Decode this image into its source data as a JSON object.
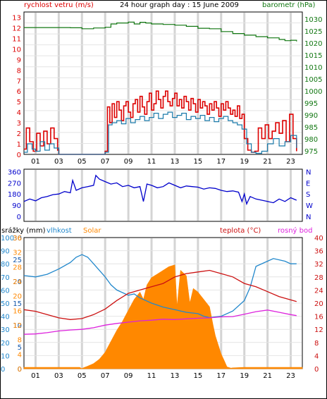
{
  "title": "24 hour graph day : 15 June 2009",
  "colors": {
    "wind": "#dd0000",
    "wind_avg": "#1a7aaa",
    "baro": "#117711",
    "dir": "#0000cc",
    "humidity": "#2288cc",
    "solar": "#ff8800",
    "temp": "#cc1111",
    "dew": "#dd22dd",
    "rain": "#1155aa",
    "grid": "#d4d4d4",
    "axis": "#000000"
  },
  "chart_data": [
    {
      "type": "line",
      "title": "24 hour graph day : 15 June 2009",
      "left_axis_label": "rychlost vetru (m/s)",
      "right_axis_label": "barometr (hPa)",
      "x_ticks": [
        "01",
        "03",
        "05",
        "07",
        "09",
        "11",
        "13",
        "15",
        "17",
        "19",
        "21",
        "23"
      ],
      "left_ylim": [
        0,
        13.5
      ],
      "left_ticks": [
        "0",
        "1",
        "2",
        "3",
        "4",
        "5",
        "6",
        "7",
        "8",
        "9",
        "10",
        "11",
        "12",
        "13"
      ],
      "right_ylim": [
        973.5,
        1033
      ],
      "right_ticks": [
        "975",
        "980",
        "985",
        "990",
        "995",
        "1000",
        "1005",
        "1010",
        "1015",
        "1020",
        "1025",
        "1030"
      ],
      "x_range": [
        0,
        24
      ],
      "series": [
        {
          "axis": "left",
          "style": "step",
          "x": [
            0,
            0.2,
            0.5,
            0.8,
            1.1,
            1.4,
            1.7,
            2,
            2.3,
            2.6,
            2.9,
            3,
            3.5,
            4,
            5,
            6,
            7,
            7.2,
            7.4,
            7.6,
            7.8,
            8,
            8.2,
            8.4,
            8.6,
            8.8,
            9,
            9.2,
            9.4,
            9.6,
            9.8,
            10,
            10.2,
            10.4,
            10.6,
            10.8,
            11,
            11.2,
            11.4,
            11.6,
            11.8,
            12,
            12.2,
            12.4,
            12.6,
            12.8,
            13,
            13.2,
            13.4,
            13.6,
            13.8,
            14,
            14.2,
            14.4,
            14.6,
            14.8,
            15,
            15.2,
            15.4,
            15.6,
            15.8,
            16,
            16.2,
            16.4,
            16.6,
            16.8,
            17,
            17.2,
            17.4,
            17.6,
            17.8,
            18,
            18.2,
            18.4,
            18.6,
            18.8,
            19,
            19.3,
            19.6,
            19.9,
            20.2,
            20.5,
            20.8,
            21.1,
            21.4,
            21.7,
            22,
            22.3,
            22.6,
            22.9,
            23.2,
            23.5
          ],
          "values": [
            0.5,
            2.5,
            1.2,
            0.3,
            2,
            0.8,
            2.2,
            1,
            2.5,
            1.5,
            0.4,
            0,
            0,
            0,
            0,
            0,
            0.3,
            4.5,
            3,
            4.8,
            3.5,
            5,
            4.2,
            3.2,
            4.6,
            5,
            4,
            3.5,
            4.8,
            5.2,
            4,
            5.5,
            4.5,
            3.8,
            5,
            5.8,
            4.2,
            4.8,
            6,
            5.2,
            4.4,
            5.5,
            6,
            5,
            4.6,
            5.3,
            5.8,
            4.6,
            5.2,
            4.4,
            5.5,
            5,
            4.2,
            5.3,
            4.8,
            4,
            5.2,
            4.4,
            5,
            4.6,
            3.8,
            4.8,
            4.2,
            5,
            4.4,
            3.6,
            4.8,
            4.2,
            5,
            4.4,
            3.8,
            4.2,
            3.6,
            4.6,
            3.4,
            3.8,
            1.5,
            0.4,
            0.2,
            0.3,
            2.5,
            1.5,
            2.8,
            1.5,
            2.2,
            3,
            2,
            3.2,
            1.2,
            3.8,
            1.5,
            0.3
          ],
          "name": ""
        },
        {
          "axis": "left",
          "style": "step",
          "x": [
            0,
            0.3,
            0.7,
            1,
            1.4,
            1.8,
            2.2,
            2.6,
            3,
            4,
            5,
            6,
            7,
            7.3,
            7.6,
            8,
            8.4,
            8.8,
            9.2,
            9.6,
            10,
            10.4,
            10.8,
            11.2,
            11.6,
            12,
            12.4,
            12.8,
            13.2,
            13.6,
            14,
            14.4,
            14.8,
            15.2,
            15.6,
            16,
            16.4,
            16.8,
            17.2,
            17.6,
            18,
            18.4,
            18.8,
            19.2,
            19.6,
            20,
            20.5,
            21,
            21.5,
            22,
            22.5,
            23,
            23.5
          ],
          "values": [
            0.2,
            1,
            0.5,
            0.3,
            1.2,
            0.4,
            1,
            0.6,
            0,
            0,
            0,
            0,
            0.2,
            2.8,
            3,
            3.2,
            2.9,
            3.4,
            3,
            3.3,
            3.6,
            3.2,
            3.5,
            3.9,
            3.4,
            3.8,
            4,
            3.5,
            3.7,
            3.9,
            3.3,
            3.6,
            3.4,
            3.7,
            3.2,
            3.5,
            3.1,
            3.4,
            3.6,
            3.2,
            3,
            2.8,
            2.4,
            1,
            0.2,
            0.1,
            0.3,
            1,
            1.5,
            0.8,
            1.2,
            1.8,
            0.6
          ],
          "name": ""
        },
        {
          "axis": "right",
          "style": "step",
          "x": [
            0,
            3,
            4,
            5,
            6,
            7,
            7.5,
            8,
            9,
            9.5,
            10,
            10.5,
            11,
            12,
            13,
            14,
            15,
            16,
            17,
            18,
            19,
            20,
            21,
            22,
            22.5,
            23,
            23.5
          ],
          "values": [
            1026.5,
            1026.5,
            1026.4,
            1026,
            1026.3,
            1026.6,
            1028,
            1028.4,
            1028.8,
            1028,
            1028.7,
            1028.4,
            1028,
            1027.8,
            1027.5,
            1027,
            1026.2,
            1026,
            1024.8,
            1024,
            1023.3,
            1022.7,
            1022.2,
            1021.5,
            1021,
            1021.2,
            1020.7
          ],
          "name": ""
        }
      ]
    },
    {
      "type": "line",
      "left_ticks": [
        "0",
        "90",
        "180",
        "270",
        "360"
      ],
      "left_ylim": [
        -40,
        380
      ],
      "right_ticks": [
        "N",
        "W",
        "S",
        "E",
        "N"
      ],
      "x_range": [
        0,
        24
      ],
      "series": [
        {
          "x": [
            0,
            0.5,
            1,
            1.5,
            2,
            2.5,
            3,
            3.5,
            4,
            4.2,
            4.5,
            5,
            5.5,
            6,
            6.2,
            6.5,
            7,
            7.5,
            8,
            8.5,
            9,
            9.5,
            10,
            10.3,
            10.6,
            11,
            11.5,
            12,
            12.5,
            13,
            13.5,
            14,
            14.5,
            15,
            15.5,
            16,
            16.5,
            17,
            17.5,
            18,
            18.5,
            18.8,
            19,
            19.2,
            19.5,
            20,
            20.5,
            21,
            21.5,
            22,
            22.5,
            23,
            23.5
          ],
          "values": [
            120,
            140,
            125,
            150,
            160,
            175,
            180,
            200,
            190,
            290,
            210,
            230,
            240,
            250,
            330,
            300,
            280,
            260,
            270,
            240,
            250,
            230,
            240,
            120,
            260,
            250,
            230,
            240,
            270,
            250,
            230,
            245,
            240,
            235,
            220,
            230,
            225,
            210,
            200,
            205,
            195,
            120,
            180,
            100,
            160,
            140,
            130,
            120,
            110,
            140,
            120,
            150,
            130
          ],
          "name": ""
        }
      ]
    },
    {
      "type": "line",
      "left_label_1": "srážky (mm)",
      "left_label_2": "vlhkost",
      "left_label_3": "Solar",
      "right_label_1": "teplota (°C)",
      "right_label_2": "rosný bod",
      "x_ticks": [
        "01",
        "03",
        "05",
        "07",
        "09",
        "11",
        "13",
        "15",
        "17",
        "19",
        "21",
        "23"
      ],
      "rain_ticks": [
        "0",
        "5",
        "10",
        "15",
        "20",
        "25",
        "30"
      ],
      "humidity_ticks": [
        "0",
        "10",
        "20",
        "30",
        "40",
        "50",
        "60",
        "70",
        "80",
        "90",
        "100"
      ],
      "solar_ticks": [
        "0",
        "4",
        "8",
        "12",
        "16",
        "20",
        "24",
        "28",
        "32",
        "36"
      ],
      "temp_ticks": [
        "0",
        "4",
        "8",
        "12",
        "16",
        "20",
        "24",
        "28",
        "32",
        "36",
        "40"
      ],
      "ylim": [
        0,
        1
      ],
      "x_range": [
        0,
        24
      ],
      "series": [
        {
          "axis": "humidity",
          "x": [
            0,
            1,
            2,
            3,
            4,
            4.5,
            5,
            5.5,
            6,
            7,
            7.5,
            8,
            8.5,
            9,
            9.5,
            10,
            10.5,
            11,
            12,
            13,
            14,
            15,
            15.5,
            16,
            17,
            18,
            19,
            19.5,
            20,
            21,
            21.5,
            22,
            22.5,
            23,
            23.5
          ],
          "values": [
            71,
            70,
            72,
            76,
            81,
            85,
            87,
            85,
            80,
            70,
            64,
            60,
            58,
            56,
            57,
            54,
            52,
            50,
            47,
            45,
            43,
            42,
            40,
            39,
            40,
            44,
            52,
            62,
            78,
            82,
            84,
            83,
            82,
            80,
            80
          ],
          "name": ""
        },
        {
          "axis": "solar",
          "style": "area",
          "x": [
            0,
            4.8,
            5,
            5.5,
            6,
            6.5,
            7,
            7.5,
            8,
            8.5,
            9,
            9.5,
            10,
            10.3,
            10.6,
            11,
            11.5,
            12,
            12.5,
            13,
            13.2,
            13.5,
            14,
            14.3,
            14.6,
            15,
            15.5,
            16,
            16.3,
            16.5,
            17,
            17.3,
            17.5,
            18,
            24
          ],
          "values": [
            0,
            0,
            0.1,
            0.7,
            1.4,
            2.6,
            4.5,
            7.5,
            10.5,
            13,
            16,
            19,
            21,
            19,
            23,
            25,
            26,
            27,
            28,
            28.5,
            17,
            27,
            25.5,
            18,
            22,
            21,
            19,
            17,
            12,
            9,
            4,
            2,
            0.5,
            0,
            0
          ],
          "name": ""
        },
        {
          "axis": "temp",
          "x": [
            0,
            1,
            2,
            3,
            4,
            5,
            6,
            7,
            8,
            9,
            10,
            11,
            12,
            13,
            14,
            15,
            16,
            17,
            18,
            19,
            20,
            21,
            22,
            23,
            23.5
          ],
          "values": [
            18,
            17.5,
            16.5,
            15.5,
            15,
            15.3,
            16.5,
            18.2,
            20.8,
            23,
            24,
            25,
            26,
            28,
            29,
            29.5,
            30,
            29,
            28,
            26,
            25,
            23.5,
            22,
            21,
            20.5
          ],
          "name": ""
        },
        {
          "axis": "temp",
          "x": [
            0,
            1,
            2,
            3,
            4,
            5,
            6,
            7,
            8,
            9,
            10,
            11,
            12,
            13,
            14,
            15,
            16,
            17,
            18,
            19,
            20,
            21,
            22,
            23,
            23.5
          ],
          "values": [
            10.5,
            10.6,
            11,
            11.5,
            11.8,
            12,
            12.5,
            13.3,
            13.8,
            14.2,
            14.6,
            14.8,
            15.1,
            15,
            15.2,
            15.4,
            15.5,
            15.8,
            15.9,
            16.6,
            17.4,
            17.9,
            17.2,
            16.5,
            16.2
          ],
          "name": ""
        },
        {
          "axis": "rain",
          "style": "area",
          "x": [
            0,
            4.8,
            5,
            17.5,
            18,
            19,
            24
          ],
          "values": [
            0.3,
            0.3,
            0,
            0,
            0.2,
            0.3,
            0.3
          ],
          "name": ""
        }
      ]
    }
  ]
}
